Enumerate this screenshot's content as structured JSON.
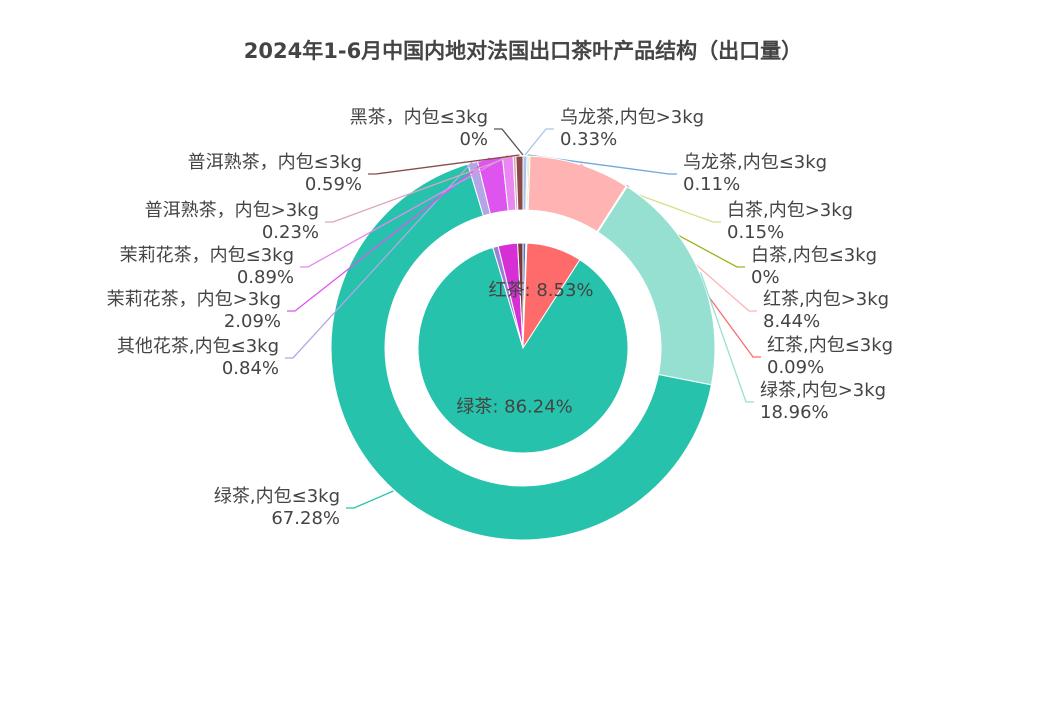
{
  "chart_data": {
    "type": "nested_pie",
    "title": "2024年1-6月中国内地对法国出口茶叶产品结构（出口量）",
    "inner": {
      "values": [
        0.44,
        0.15,
        8.53,
        86.24,
        0.84,
        2.98,
        0.82,
        0
      ],
      "value_labels": [
        null,
        null,
        "红茶: 8.53%",
        "绿茶: 86.24%",
        null,
        null,
        null,
        null
      ],
      "colors": [
        "#4a78c8",
        "#a0b020",
        "#ff6b6b",
        "#26c2ab",
        "#9a7fd6",
        "#d62fd6",
        "#7a3a3a",
        "#333333"
      ]
    },
    "outer": {
      "categories": [
        "乌龙茶,内包>3kg",
        "乌龙茶,内包≤3kg",
        "白茶,内包>3kg",
        "白茶,内包≤3kg",
        "红茶,内包>3kg",
        "红茶,内包≤3kg",
        "绿茶,内包>3kg",
        "绿茶,内包≤3kg",
        "其他花茶,内包≤3kg",
        "茉莉花茶，内包>3kg",
        "茉莉花茶，内包≤3kg",
        "普洱熟茶，内包>3kg",
        "普洱熟茶，内包≤3kg",
        "黑茶，内包≤3kg"
      ],
      "values": [
        0.33,
        0.11,
        0.15,
        0,
        8.44,
        0.09,
        18.96,
        67.28,
        0.84,
        2.09,
        0.89,
        0.23,
        0.59,
        0
      ],
      "value_labels": [
        "0.33%",
        "0.11%",
        "0.15%",
        "0%",
        "8.44%",
        "0.09%",
        "18.96%",
        "67.28%",
        "0.84%",
        "2.09%",
        "0.89%",
        "0.23%",
        "0.59%",
        "0%"
      ],
      "colors": [
        "#a9c4e8",
        "#6fa8dc",
        "#d4e08a",
        "#a0b020",
        "#ffb3b3",
        "#ff6b6b",
        "#96e0d2",
        "#26c2ab",
        "#b3a6e6",
        "#dd55ee",
        "#e888f0",
        "#d9a6c0",
        "#8b4a4a",
        "#555555"
      ]
    }
  }
}
